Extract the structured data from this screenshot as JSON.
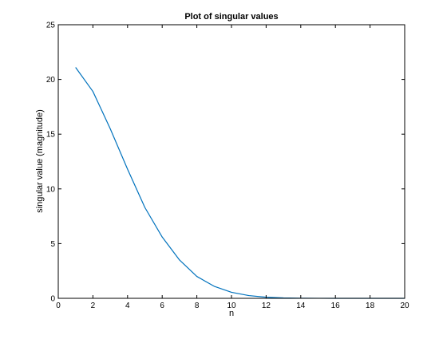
{
  "chart_data": {
    "type": "line",
    "title": "Plot of singular values",
    "xlabel": "n",
    "ylabel": "singular value (magnitude)",
    "xlim": [
      0,
      20
    ],
    "ylim": [
      0,
      25
    ],
    "xticks": [
      0,
      2,
      4,
      6,
      8,
      10,
      12,
      14,
      16,
      18,
      20
    ],
    "yticks": [
      0,
      5,
      10,
      15,
      20,
      25
    ],
    "grid": false,
    "legend": "none",
    "series": [
      {
        "color": "#0072bd",
        "x": [
          1,
          2,
          3,
          4,
          5,
          6,
          7,
          8,
          9,
          10,
          11,
          12,
          13,
          14,
          15,
          16,
          17,
          18,
          19,
          20
        ],
        "y": [
          21.1,
          18.9,
          15.5,
          11.8,
          8.3,
          5.6,
          3.5,
          2.0,
          1.1,
          0.55,
          0.25,
          0.1,
          0.04,
          0.015,
          0.005,
          0.002,
          0.001,
          0.0005,
          0.0002,
          0.0001
        ]
      }
    ]
  }
}
